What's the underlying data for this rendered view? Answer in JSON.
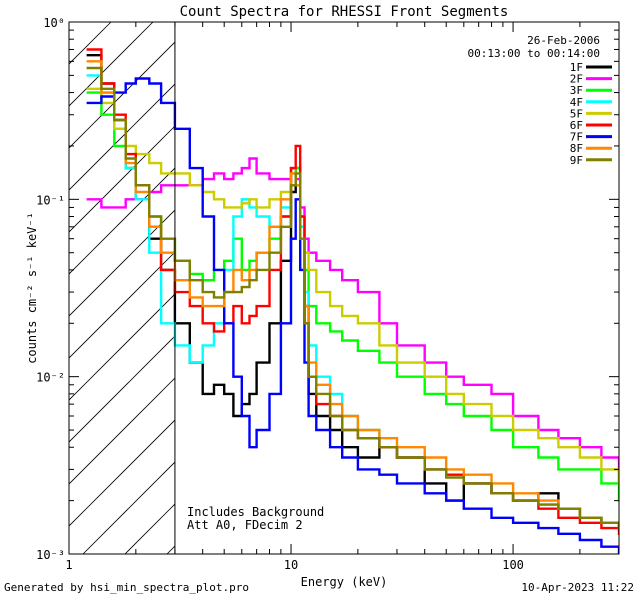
{
  "chart_data": {
    "type": "line",
    "title": "Count Spectra for RHESSI Front Segments",
    "xlabel": "Energy (keV)",
    "ylabel": "counts cm⁻² s⁻¹ keV⁻¹",
    "xscale": "log",
    "yscale": "log",
    "xlim": [
      1.0,
      300
    ],
    "ylim": [
      0.001,
      1.0
    ],
    "x_tick_labels": [
      "1",
      "10",
      "100"
    ],
    "y_tick_labels": [
      "10⁰",
      "10⁻¹",
      "10⁻²",
      "10⁻³"
    ],
    "date": "26-Feb-2006",
    "time_range": "00:13:00 to 00:14:00",
    "annotations": [
      "Includes Background",
      "Att A0, FDecim 2"
    ],
    "shaded_region_keV": [
      1.0,
      3.0
    ],
    "legend_position": "top-right",
    "energy_keV": [
      1.2,
      1.4,
      1.6,
      1.8,
      2.0,
      2.3,
      2.6,
      3.0,
      3.5,
      4.0,
      4.5,
      5.0,
      5.5,
      6.0,
      6.5,
      7.0,
      8.0,
      9.0,
      10.0,
      10.5,
      11.0,
      11.5,
      12.0,
      13.0,
      15.0,
      17.0,
      20.0,
      25.0,
      30.0,
      40.0,
      50.0,
      60.0,
      80.0,
      100.0,
      130.0,
      160.0,
      200.0,
      250.0,
      300.0
    ],
    "series": [
      {
        "name": "1F",
        "color": "#000000",
        "values": [
          0.65,
          0.45,
          0.28,
          0.15,
          0.1,
          0.06,
          0.04,
          0.02,
          0.012,
          0.008,
          0.009,
          0.008,
          0.006,
          0.007,
          0.008,
          0.012,
          0.02,
          0.045,
          0.11,
          0.15,
          0.07,
          0.02,
          0.008,
          0.006,
          0.005,
          0.004,
          0.0035,
          0.004,
          0.0035,
          0.0025,
          0.002,
          0.0025,
          0.0022,
          0.002,
          0.0022,
          0.0018,
          0.0016,
          0.0015,
          0.0014
        ]
      },
      {
        "name": "2F",
        "color": "#ff00ff",
        "values": [
          0.1,
          0.09,
          0.09,
          0.1,
          0.1,
          0.11,
          0.12,
          0.12,
          0.12,
          0.13,
          0.14,
          0.13,
          0.14,
          0.15,
          0.17,
          0.14,
          0.13,
          0.13,
          0.15,
          0.13,
          0.09,
          0.06,
          0.05,
          0.045,
          0.04,
          0.035,
          0.03,
          0.02,
          0.015,
          0.012,
          0.01,
          0.009,
          0.008,
          0.006,
          0.005,
          0.0045,
          0.004,
          0.0035,
          0.0025
        ]
      },
      {
        "name": "3F",
        "color": "#00ff00",
        "values": [
          0.4,
          0.3,
          0.2,
          0.15,
          0.12,
          0.08,
          0.06,
          0.045,
          0.038,
          0.035,
          0.04,
          0.045,
          0.06,
          0.04,
          0.045,
          0.05,
          0.06,
          0.08,
          0.12,
          0.15,
          0.08,
          0.04,
          0.025,
          0.02,
          0.018,
          0.016,
          0.014,
          0.012,
          0.01,
          0.008,
          0.007,
          0.006,
          0.005,
          0.004,
          0.0035,
          0.003,
          0.003,
          0.0025,
          0.002
        ]
      },
      {
        "name": "4F",
        "color": "#00ffff",
        "values": [
          0.5,
          0.4,
          0.25,
          0.15,
          0.1,
          0.05,
          0.02,
          0.015,
          0.012,
          0.015,
          0.02,
          0.04,
          0.08,
          0.1,
          0.09,
          0.08,
          0.07,
          0.09,
          0.12,
          0.14,
          0.07,
          0.03,
          0.015,
          0.01,
          0.008,
          0.006,
          0.005,
          0.004,
          0.0035,
          0.003,
          0.0028,
          0.0025,
          0.0022,
          0.002,
          0.0019,
          0.0018,
          0.0016,
          0.0015,
          0.0014
        ]
      },
      {
        "name": "5F",
        "color": "#cccc00",
        "values": [
          0.42,
          0.35,
          0.25,
          0.2,
          0.18,
          0.16,
          0.14,
          0.14,
          0.12,
          0.11,
          0.1,
          0.09,
          0.09,
          0.095,
          0.1,
          0.09,
          0.1,
          0.11,
          0.14,
          0.12,
          0.08,
          0.05,
          0.04,
          0.03,
          0.025,
          0.022,
          0.02,
          0.015,
          0.012,
          0.01,
          0.008,
          0.007,
          0.006,
          0.005,
          0.0045,
          0.004,
          0.0035,
          0.003,
          0.0025
        ]
      },
      {
        "name": "6F",
        "color": "#ff0000",
        "values": [
          0.7,
          0.45,
          0.3,
          0.18,
          0.12,
          0.07,
          0.04,
          0.03,
          0.025,
          0.02,
          0.018,
          0.02,
          0.025,
          0.02,
          0.022,
          0.025,
          0.04,
          0.08,
          0.15,
          0.2,
          0.08,
          0.025,
          0.01,
          0.007,
          0.006,
          0.005,
          0.0045,
          0.004,
          0.0035,
          0.003,
          0.0028,
          0.0025,
          0.0022,
          0.002,
          0.0018,
          0.0016,
          0.0015,
          0.0014,
          0.0013
        ]
      },
      {
        "name": "7F",
        "color": "#0000ff",
        "values": [
          0.35,
          0.38,
          0.4,
          0.45,
          0.48,
          0.45,
          0.35,
          0.25,
          0.15,
          0.08,
          0.04,
          0.02,
          0.01,
          0.006,
          0.004,
          0.005,
          0.008,
          0.02,
          0.06,
          0.1,
          0.04,
          0.012,
          0.006,
          0.005,
          0.004,
          0.0035,
          0.003,
          0.0028,
          0.0025,
          0.0022,
          0.002,
          0.0018,
          0.0016,
          0.0015,
          0.0014,
          0.0013,
          0.0012,
          0.0011,
          0.001
        ]
      },
      {
        "name": "8F",
        "color": "#ff8800",
        "values": [
          0.6,
          0.4,
          0.28,
          0.16,
          0.11,
          0.07,
          0.05,
          0.035,
          0.028,
          0.025,
          0.025,
          0.03,
          0.04,
          0.035,
          0.04,
          0.05,
          0.07,
          0.1,
          0.14,
          0.12,
          0.06,
          0.025,
          0.012,
          0.009,
          0.007,
          0.006,
          0.005,
          0.0045,
          0.004,
          0.0035,
          0.003,
          0.0028,
          0.0025,
          0.0022,
          0.002,
          0.0018,
          0.0016,
          0.0015,
          0.0014
        ]
      },
      {
        "name": "9F",
        "color": "#808000",
        "values": [
          0.55,
          0.42,
          0.28,
          0.17,
          0.12,
          0.08,
          0.06,
          0.045,
          0.035,
          0.03,
          0.028,
          0.03,
          0.03,
          0.032,
          0.035,
          0.04,
          0.05,
          0.07,
          0.12,
          0.14,
          0.06,
          0.02,
          0.01,
          0.008,
          0.006,
          0.005,
          0.0045,
          0.004,
          0.0035,
          0.003,
          0.0027,
          0.0025,
          0.0022,
          0.002,
          0.0019,
          0.0018,
          0.0016,
          0.0015,
          0.0014
        ]
      }
    ]
  },
  "footer": {
    "generated_by": "Generated by hsi_min_spectra_plot.pro",
    "timestamp": "10-Apr-2023 11:22"
  }
}
